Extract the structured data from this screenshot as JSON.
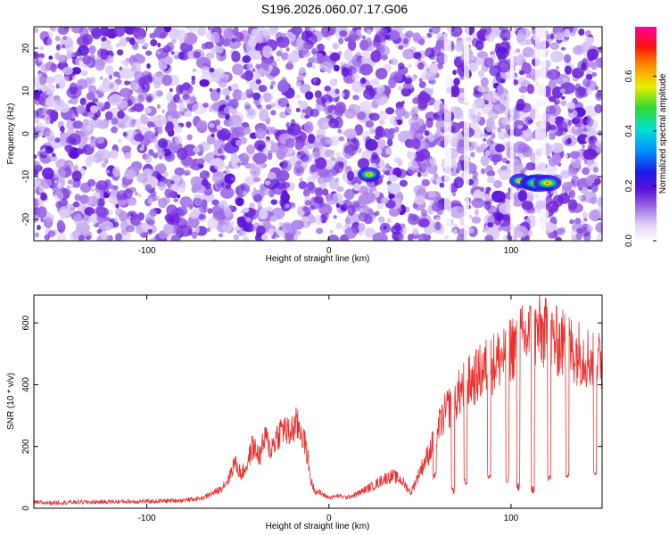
{
  "figure": {
    "title": "S196.2026.060.07.17.G06"
  },
  "colors": {
    "snr_line": "#e8312f",
    "colormap": [
      "#ffffff",
      "#dccdf6",
      "#b48ceb",
      "#8a4ee0",
      "#6a1fd8",
      "#2b19e0",
      "#008cff",
      "#00e6d2",
      "#3cdc3c",
      "#f0f000",
      "#ff8c00",
      "#ff0000",
      "#ff00a0"
    ]
  },
  "chart_data": [
    {
      "type": "heatmap",
      "name": "spectrogram",
      "xlabel": "Height of straight line (km)",
      "ylabel": "Frequency (Hz)",
      "xlim": [
        -162,
        150
      ],
      "ylim": [
        -25,
        25
      ],
      "x_ticks": [
        -100,
        0,
        100
      ],
      "x_tick_labels": [
        "-100",
        "0",
        "100"
      ],
      "y_ticks": [
        -20,
        -10,
        0,
        10,
        20
      ],
      "y_tick_labels": [
        "-20",
        "-10",
        "0",
        "10",
        "20"
      ],
      "background": "speckled noise, normalized amplitude ~0.0-0.2",
      "peaks": [
        {
          "x": 22,
          "y": -9.5,
          "amplitude": 0.35
        },
        {
          "x": 105,
          "y": -11,
          "amplitude": 0.3
        },
        {
          "x": 112,
          "y": -11.5,
          "amplitude": 0.45
        },
        {
          "x": 115,
          "y": -11.5,
          "amplitude": 0.75
        },
        {
          "x": 120,
          "y": -11.5,
          "amplitude": 0.55
        }
      ],
      "colorbar": {
        "label": "Normalized spectral amplitude",
        "range": [
          0,
          0.78
        ],
        "ticks": [
          0,
          0.2,
          0.4,
          0.6
        ],
        "tick_labels": [
          "0.0",
          "0.2",
          "0.4",
          "0.6"
        ]
      }
    },
    {
      "type": "line",
      "name": "snr",
      "xlabel": "Height of straight line (km)",
      "ylabel": "SNR (10 * v/v)",
      "xlim": [
        -162,
        150
      ],
      "ylim": [
        0,
        690
      ],
      "x_ticks": [
        -100,
        0,
        100
      ],
      "x_tick_labels": [
        "-100",
        "0",
        "100"
      ],
      "y_ticks": [
        0,
        200,
        400,
        600
      ],
      "y_tick_labels": [
        "0",
        "200",
        "400",
        "600"
      ],
      "series": [
        {
          "name": "SNR",
          "x": [
            -162,
            -150,
            -140,
            -130,
            -120,
            -110,
            -100,
            -90,
            -80,
            -70,
            -65,
            -60,
            -55,
            -52,
            -48,
            -45,
            -42,
            -38,
            -35,
            -32,
            -28,
            -25,
            -22,
            -18,
            -15,
            -12,
            -10,
            -8,
            -5,
            -2,
            0,
            5,
            10,
            15,
            20,
            25,
            30,
            35,
            40,
            45,
            50,
            55,
            60,
            65,
            70,
            75,
            80,
            85,
            90,
            95,
            100,
            105,
            110,
            115,
            120,
            125,
            130,
            135,
            140,
            145,
            150
          ],
          "values": [
            18,
            18,
            20,
            20,
            21,
            22,
            22,
            24,
            26,
            32,
            45,
            60,
            95,
            150,
            110,
            140,
            200,
            170,
            230,
            190,
            240,
            260,
            240,
            270,
            250,
            180,
            90,
            60,
            50,
            40,
            35,
            40,
            35,
            45,
            60,
            75,
            95,
            105,
            90,
            50,
            120,
            180,
            260,
            320,
            360,
            400,
            420,
            450,
            470,
            490,
            520,
            540,
            560,
            570,
            560,
            540,
            530,
            510,
            500,
            480,
            470
          ]
        }
      ],
      "dropouts": [
        {
          "x": 58,
          "value": 100
        },
        {
          "x": 68,
          "value": 60
        },
        {
          "x": 75,
          "value": 80
        },
        {
          "x": 88,
          "value": 110
        },
        {
          "x": 98,
          "value": 90
        },
        {
          "x": 104,
          "value": 70
        },
        {
          "x": 112,
          "value": 60
        },
        {
          "x": 121,
          "value": 100
        },
        {
          "x": 131,
          "value": 110
        },
        {
          "x": 146,
          "value": 120
        }
      ]
    }
  ]
}
